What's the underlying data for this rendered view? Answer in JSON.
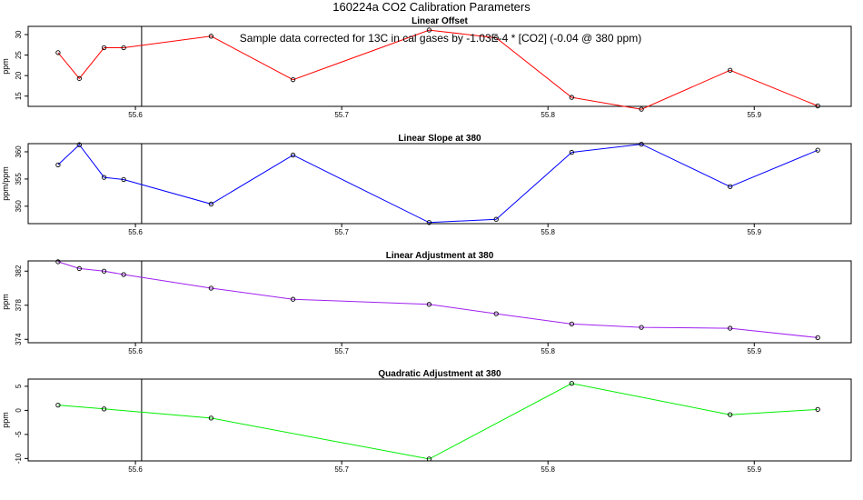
{
  "title": "160224a   CO2 Calibration Parameters",
  "annotation": "Sample data corrected for 13C in cal gases by -1.03E-4 * [CO2] (-0.04 @ 380 ppm)",
  "reference_x": 55.603,
  "chart_data": [
    {
      "type": "line",
      "title": "Linear Offset",
      "ylabel": "ppm",
      "color": "#ff0000",
      "xlim": [
        55.548,
        55.947
      ],
      "ylim": [
        12.5,
        32
      ],
      "xticks": [
        "55.6",
        "55.7",
        "55.8",
        "55.9"
      ],
      "yticks": [
        "15",
        "20",
        "25",
        "30"
      ],
      "x": [
        55.5625,
        55.5728,
        55.5848,
        55.5943,
        55.6367,
        55.6764,
        55.7424,
        55.7749,
        55.8115,
        55.8453,
        55.8883,
        55.9308
      ],
      "y": [
        25.6,
        19.3,
        26.8,
        26.8,
        29.6,
        19.0,
        31.1,
        29.2,
        14.7,
        11.8,
        21.3,
        12.6
      ]
    },
    {
      "type": "line",
      "title": "Linear Slope at 380",
      "ylabel": "ppm/ppm",
      "color": "#0000ff",
      "xlim": [
        55.548,
        55.947
      ],
      "ylim": [
        346.8,
        361.5
      ],
      "xticks": [
        "55.6",
        "55.7",
        "55.8",
        "55.9"
      ],
      "yticks": [
        "350",
        "355",
        "360"
      ],
      "x": [
        55.5625,
        55.5728,
        55.5848,
        55.5943,
        55.6367,
        55.6764,
        55.7424,
        55.7749,
        55.8115,
        55.8453,
        55.8883,
        55.9308
      ],
      "y": [
        357.6,
        361.3,
        355.3,
        354.9,
        350.4,
        359.4,
        347.0,
        347.6,
        359.9,
        361.4,
        353.6,
        360.3
      ]
    },
    {
      "type": "line",
      "title": "Linear Adjustment at 380",
      "ylabel": "ppm",
      "color": "#a020f0",
      "xlim": [
        55.548,
        55.947
      ],
      "ylim": [
        373.6,
        383.2
      ],
      "xticks": [
        "55.6",
        "55.7",
        "55.8",
        "55.9"
      ],
      "yticks": [
        "374",
        "378",
        "382"
      ],
      "x": [
        55.5625,
        55.5728,
        55.5848,
        55.5943,
        55.6367,
        55.6764,
        55.7424,
        55.7749,
        55.8115,
        55.8453,
        55.8883,
        55.9308
      ],
      "y": [
        383.1,
        382.3,
        382.0,
        381.6,
        380.0,
        378.7,
        378.1,
        377.0,
        375.8,
        375.4,
        375.3,
        374.2
      ]
    },
    {
      "type": "line",
      "title": "Quadratic Adjustment at 380",
      "ylabel": "ppm",
      "color": "#00ee00",
      "xlim": [
        55.548,
        55.947
      ],
      "ylim": [
        -10.5,
        6.5
      ],
      "xticks": [
        "55.6",
        "55.7",
        "55.8",
        "55.9"
      ],
      "yticks": [
        "-10",
        "-5",
        "0",
        "5"
      ],
      "x": [
        55.5625,
        55.5848,
        55.6367,
        55.7424,
        55.8115,
        55.8883,
        55.9308
      ],
      "y": [
        1.1,
        0.3,
        -1.6,
        -10.1,
        5.6,
        -0.9,
        0.2
      ]
    }
  ]
}
